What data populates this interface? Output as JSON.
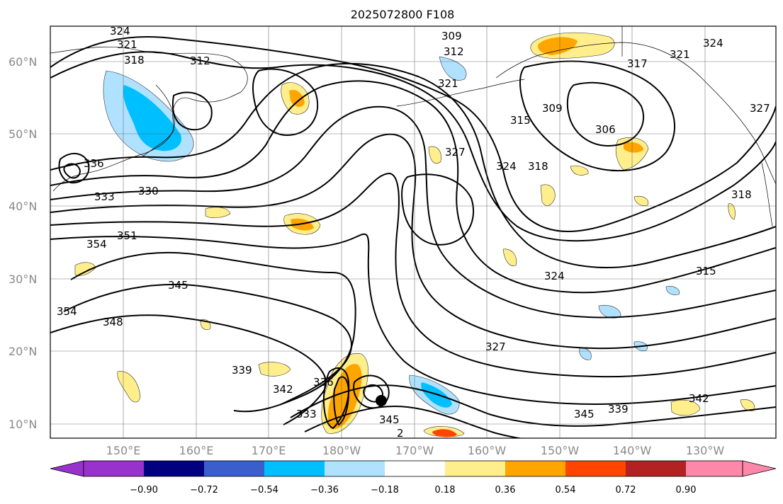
{
  "title": "2025072800 F108",
  "lat_labels": [
    "10°N",
    "20°N",
    "30°N",
    "40°N",
    "50°N",
    "60°N"
  ],
  "lon_labels": [
    "150°E",
    "160°E",
    "170°E",
    "180°W",
    "170°W",
    "160°W",
    "150°W",
    "140°W",
    "130°W"
  ],
  "contour_labels": [
    "324",
    "321",
    "318",
    "312",
    "309",
    "312",
    "321",
    "315",
    "309",
    "306",
    "321",
    "324",
    "317",
    "327",
    "324",
    "318",
    "336",
    "333",
    "330",
    "351",
    "354",
    "345",
    "348",
    "354",
    "324",
    "315",
    "327",
    "339",
    "336",
    "342",
    "333",
    "345",
    "339",
    "345",
    "342",
    "318",
    "327",
    "2"
  ],
  "colorbar": {
    "colors": [
      "#9932cc",
      "#000080",
      "#3a5fcd",
      "#00bfff",
      "#b0e2ff",
      "#ffffff",
      "#ffee8c",
      "#ffa500",
      "#ff4500",
      "#b22222",
      "#ff88aa"
    ],
    "tick_labels": [
      "−0.90",
      "−0.72",
      "−0.54",
      "−0.36",
      "−0.18",
      "0.18",
      "0.36",
      "0.54",
      "0.72",
      "0.90"
    ]
  }
}
